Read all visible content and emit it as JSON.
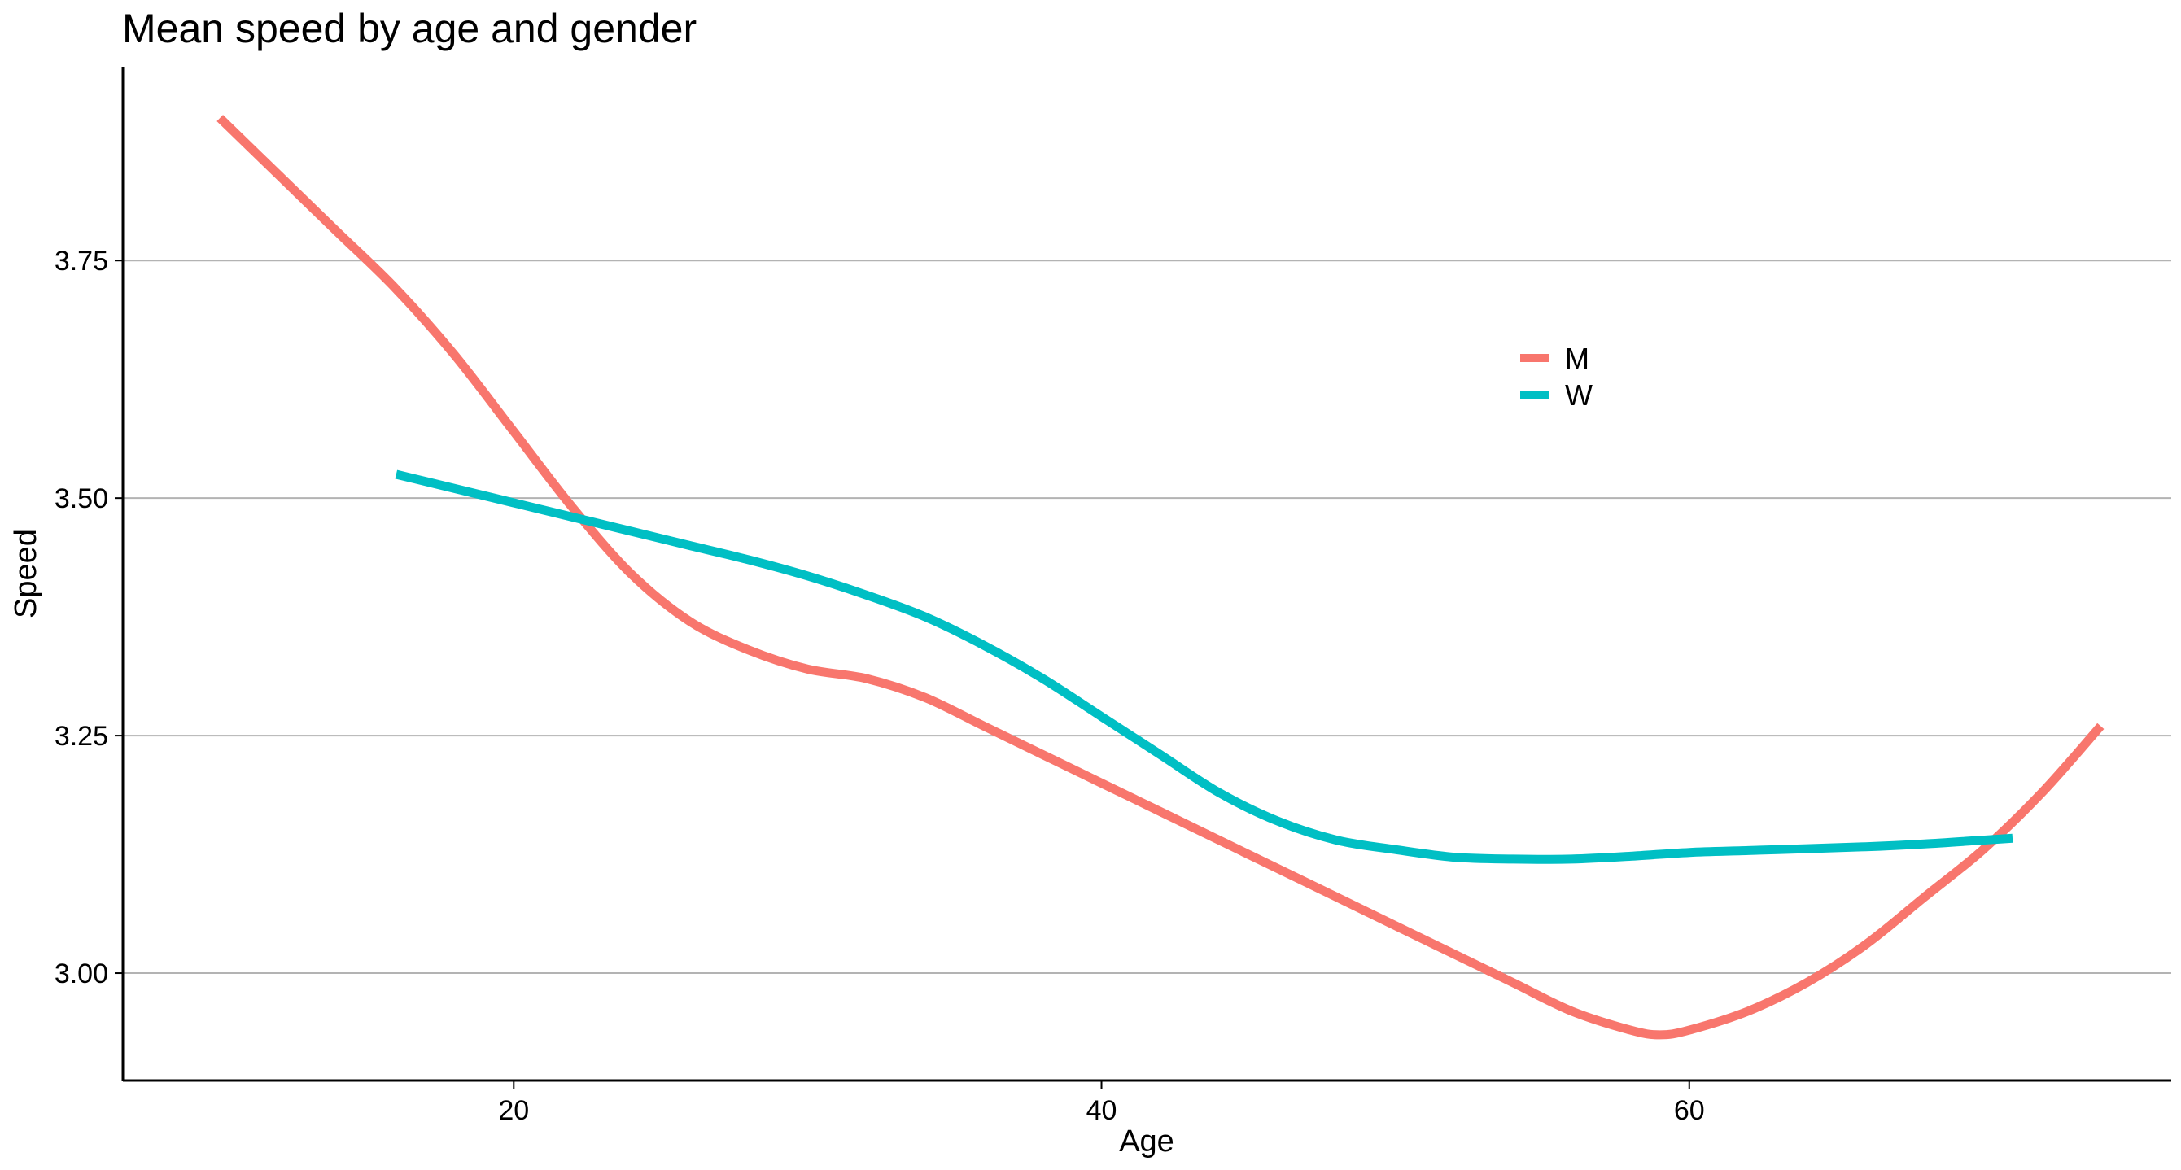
{
  "chart_data": {
    "type": "line",
    "title": "Mean speed by age and gender",
    "xlabel": "Age",
    "ylabel": "Speed",
    "xlim": [
      6.7,
      76.4
    ],
    "ylim": [
      2.887,
      3.954
    ],
    "xticks": [
      20,
      40,
      60
    ],
    "yticks": [
      3.0,
      3.25,
      3.5,
      3.75
    ],
    "xtick_labels": [
      "20",
      "40",
      "60"
    ],
    "ytick_labels": [
      "3.00",
      "3.25",
      "3.50",
      "3.75"
    ],
    "grid": "horizontal major",
    "legend_position": "inside upper-right",
    "series": [
      {
        "name": "M",
        "color": "#F8766D",
        "x": [
          10,
          12,
          14,
          16,
          18,
          20,
          22,
          24,
          26,
          28,
          30,
          32,
          34,
          36,
          38,
          40,
          42,
          44,
          46,
          48,
          50,
          52,
          54,
          56,
          58,
          59,
          60,
          62,
          64,
          66,
          68,
          70,
          72,
          74
        ],
        "y": [
          3.9,
          3.84,
          3.78,
          3.72,
          3.65,
          3.57,
          3.49,
          3.42,
          3.37,
          3.34,
          3.32,
          3.31,
          3.29,
          3.26,
          3.23,
          3.2,
          3.17,
          3.14,
          3.11,
          3.08,
          3.05,
          3.02,
          2.99,
          2.96,
          2.94,
          2.935,
          2.94,
          2.96,
          2.99,
          3.03,
          3.08,
          3.13,
          3.19,
          3.26
        ]
      },
      {
        "name": "W",
        "color": "#00BFC4",
        "x": [
          16,
          18,
          20,
          22,
          24,
          26,
          28,
          30,
          32,
          34,
          36,
          38,
          40,
          42,
          44,
          46,
          48,
          50,
          52,
          54,
          56,
          58,
          60,
          62,
          64,
          66,
          68,
          70,
          71
        ],
        "y": [
          3.525,
          3.51,
          3.495,
          3.48,
          3.465,
          3.45,
          3.435,
          3.418,
          3.398,
          3.375,
          3.345,
          3.31,
          3.27,
          3.23,
          3.19,
          3.16,
          3.14,
          3.13,
          3.122,
          3.12,
          3.12,
          3.123,
          3.127,
          3.129,
          3.131,
          3.133,
          3.136,
          3.14,
          3.142
        ]
      }
    ]
  }
}
